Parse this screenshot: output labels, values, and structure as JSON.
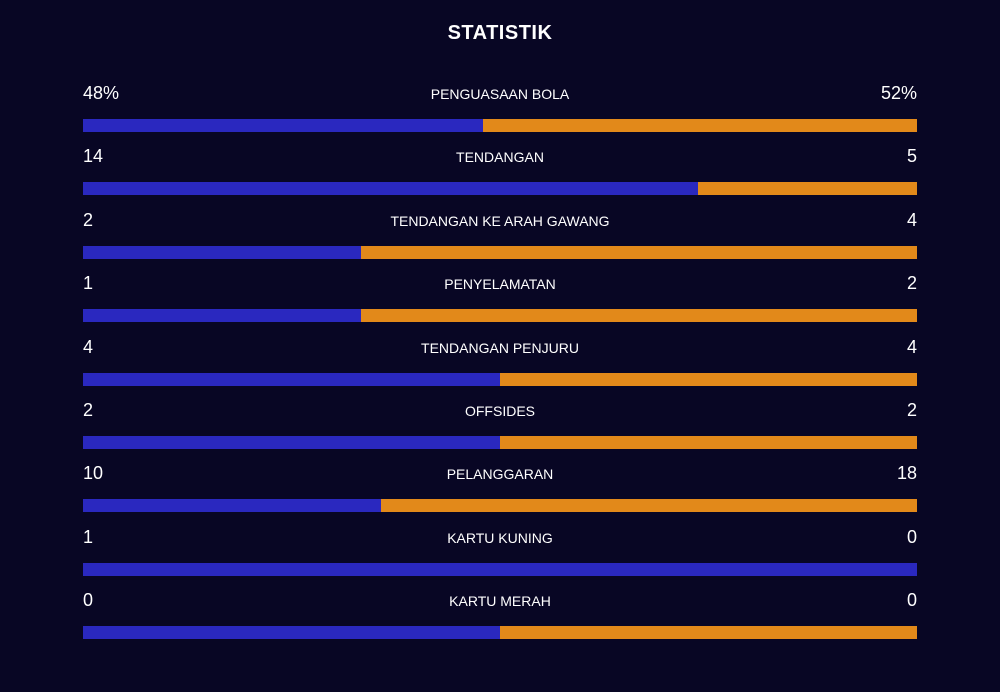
{
  "title": "STATISTIK",
  "colors": {
    "home": "#2a28bf",
    "away": "#e2891a",
    "background": "#080624"
  },
  "stats": [
    {
      "label": "PENGUASAAN BOLA",
      "home": "48%",
      "away": "52%",
      "home_share": 0.48
    },
    {
      "label": "TENDANGAN",
      "home": "14",
      "away": "5",
      "home_share": 0.737
    },
    {
      "label": "TENDANGAN KE ARAH GAWANG",
      "home": "2",
      "away": "4",
      "home_share": 0.333
    },
    {
      "label": "PENYELAMATAN",
      "home": "1",
      "away": "2",
      "home_share": 0.333
    },
    {
      "label": "TENDANGAN PENJURU",
      "home": "4",
      "away": "4",
      "home_share": 0.5
    },
    {
      "label": "OFFSIDES",
      "home": "2",
      "away": "2",
      "home_share": 0.5
    },
    {
      "label": "PELANGGARAN",
      "home": "10",
      "away": "18",
      "home_share": 0.357
    },
    {
      "label": "KARTU KUNING",
      "home": "1",
      "away": "0",
      "home_share": 1.0
    },
    {
      "label": "KARTU MERAH",
      "home": "0",
      "away": "0",
      "home_share": 0.5
    }
  ]
}
